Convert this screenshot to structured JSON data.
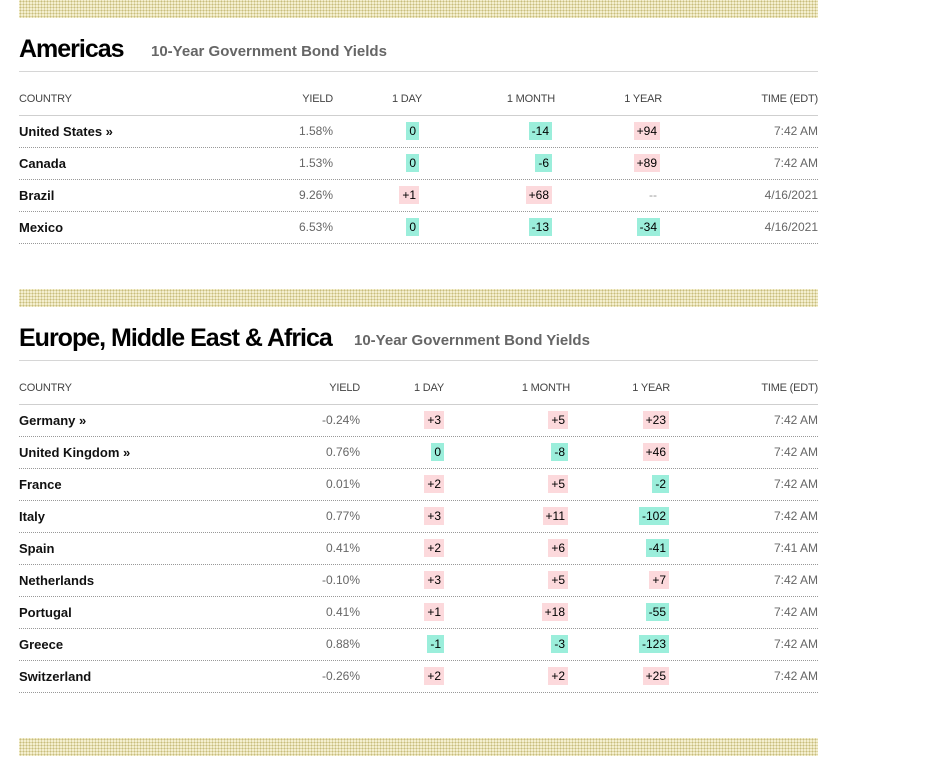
{
  "sections": [
    {
      "title": "Americas",
      "subtitle": "10-Year Government Bond Yields",
      "columns": [
        "COUNTRY",
        "YIELD",
        "1 DAY",
        "1 MONTH",
        "1 YEAR",
        "TIME (EDT)"
      ],
      "rows": [
        {
          "country": "United States »",
          "yield": "1.58%",
          "day": "0",
          "month": "-14",
          "year": "+94",
          "time": "7:42 AM"
        },
        {
          "country": "Canada",
          "yield": "1.53%",
          "day": "0",
          "month": "-6",
          "year": "+89",
          "time": "7:42 AM"
        },
        {
          "country": "Brazil",
          "yield": "9.26%",
          "day": "+1",
          "month": "+68",
          "year": "--",
          "time": "4/16/2021"
        },
        {
          "country": "Mexico",
          "yield": "6.53%",
          "day": "0",
          "month": "-13",
          "year": "-34",
          "time": "4/16/2021"
        }
      ]
    },
    {
      "title": "Europe, Middle East & Africa",
      "subtitle": "10-Year Government Bond Yields",
      "columns": [
        "COUNTRY",
        "YIELD",
        "1 DAY",
        "1 MONTH",
        "1 YEAR",
        "TIME (EDT)"
      ],
      "rows": [
        {
          "country": "Germany »",
          "yield": "-0.24%",
          "day": "+3",
          "month": "+5",
          "year": "+23",
          "time": "7:42 AM"
        },
        {
          "country": "United Kingdom »",
          "yield": "0.76%",
          "day": "0",
          "month": "-8",
          "year": "+46",
          "time": "7:42 AM"
        },
        {
          "country": "France",
          "yield": "0.01%",
          "day": "+2",
          "month": "+5",
          "year": "-2",
          "time": "7:42 AM"
        },
        {
          "country": "Italy",
          "yield": "0.77%",
          "day": "+3",
          "month": "+11",
          "year": "-102",
          "time": "7:42 AM"
        },
        {
          "country": "Spain",
          "yield": "0.41%",
          "day": "+2",
          "month": "+6",
          "year": "-41",
          "time": "7:41 AM"
        },
        {
          "country": "Netherlands",
          "yield": "-0.10%",
          "day": "+3",
          "month": "+5",
          "year": "+7",
          "time": "7:42 AM"
        },
        {
          "country": "Portugal",
          "yield": "0.41%",
          "day": "+1",
          "month": "+18",
          "year": "-55",
          "time": "7:42 AM"
        },
        {
          "country": "Greece",
          "yield": "0.88%",
          "day": "-1",
          "month": "-3",
          "year": "-123",
          "time": "7:42 AM"
        },
        {
          "country": "Switzerland",
          "yield": "-0.26%",
          "day": "+2",
          "month": "+2",
          "year": "+25",
          "time": "7:42 AM"
        }
      ]
    }
  ],
  "colors": {
    "positive_bg": "#fcd9dc",
    "negative_bg": "#9beedb",
    "divider_band": "#f4efcf"
  }
}
